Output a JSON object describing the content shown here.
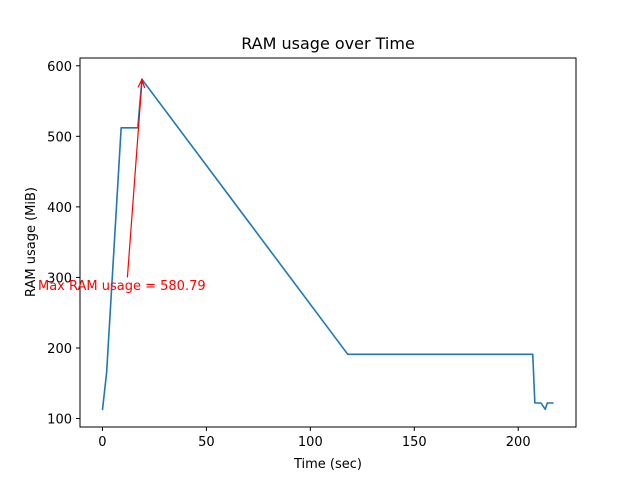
{
  "chart_data": {
    "type": "line",
    "title": "RAM usage over Time",
    "xlabel": "Time (sec)",
    "ylabel": "RAM usage (MiB)",
    "xlim": [
      -10.8,
      227.8
    ],
    "ylim": [
      88,
      611
    ],
    "xticks": [
      0,
      50,
      100,
      150,
      200
    ],
    "yticks": [
      100,
      200,
      300,
      400,
      500,
      600
    ],
    "grid": false,
    "series": [
      {
        "color": "#1f77b4",
        "x": [
          0,
          2,
          9,
          10,
          17,
          19,
          118,
          207,
          208,
          211,
          213,
          214,
          217
        ],
        "y": [
          112,
          165,
          512,
          512,
          512,
          580.79,
          191,
          191,
          122,
          122,
          113,
          122,
          122
        ]
      }
    ],
    "annotation": {
      "text": "Max RAM usage = 580.79",
      "color": "#ff0000",
      "point": [
        19,
        580.79
      ],
      "text_at": [
        12,
        300
      ]
    }
  }
}
